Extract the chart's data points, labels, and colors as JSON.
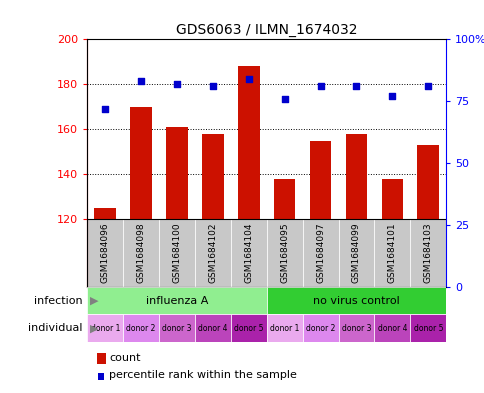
{
  "title": "GDS6063 / ILMN_1674032",
  "samples": [
    "GSM1684096",
    "GSM1684098",
    "GSM1684100",
    "GSM1684102",
    "GSM1684104",
    "GSM1684095",
    "GSM1684097",
    "GSM1684099",
    "GSM1684101",
    "GSM1684103"
  ],
  "counts": [
    125,
    170,
    161,
    158,
    188,
    138,
    155,
    158,
    138,
    153
  ],
  "percentiles": [
    72,
    83,
    82,
    81,
    84,
    76,
    81,
    81,
    77,
    81
  ],
  "ylim_left": [
    120,
    200
  ],
  "ylim_right": [
    0,
    100
  ],
  "yticks_left": [
    120,
    140,
    160,
    180,
    200
  ],
  "yticks_right": [
    0,
    25,
    50,
    75,
    100
  ],
  "infection_groups": [
    {
      "label": "influenza A",
      "start": 0,
      "end": 5,
      "color": "#90EE90"
    },
    {
      "label": "no virus control",
      "start": 5,
      "end": 10,
      "color": "#32CD32"
    }
  ],
  "individual_labels": [
    "donor 1",
    "donor 2",
    "donor 3",
    "donor 4",
    "donor 5",
    "donor 1",
    "donor 2",
    "donor 3",
    "donor 4",
    "donor 5"
  ],
  "individual_colors": [
    "#EAAAEE",
    "#DD88EE",
    "#CC66CC",
    "#BB44BB",
    "#AA22AA",
    "#EAAAEE",
    "#DD88EE",
    "#CC66CC",
    "#BB44BB",
    "#AA22AA"
  ],
  "bar_color": "#CC1100",
  "dot_color": "#0000CC",
  "sample_bg_color": "#C8C8C8",
  "legend_count_label": "count",
  "legend_percentile_label": "percentile rank within the sample",
  "infection_label": "infection",
  "individual_label": "individual"
}
